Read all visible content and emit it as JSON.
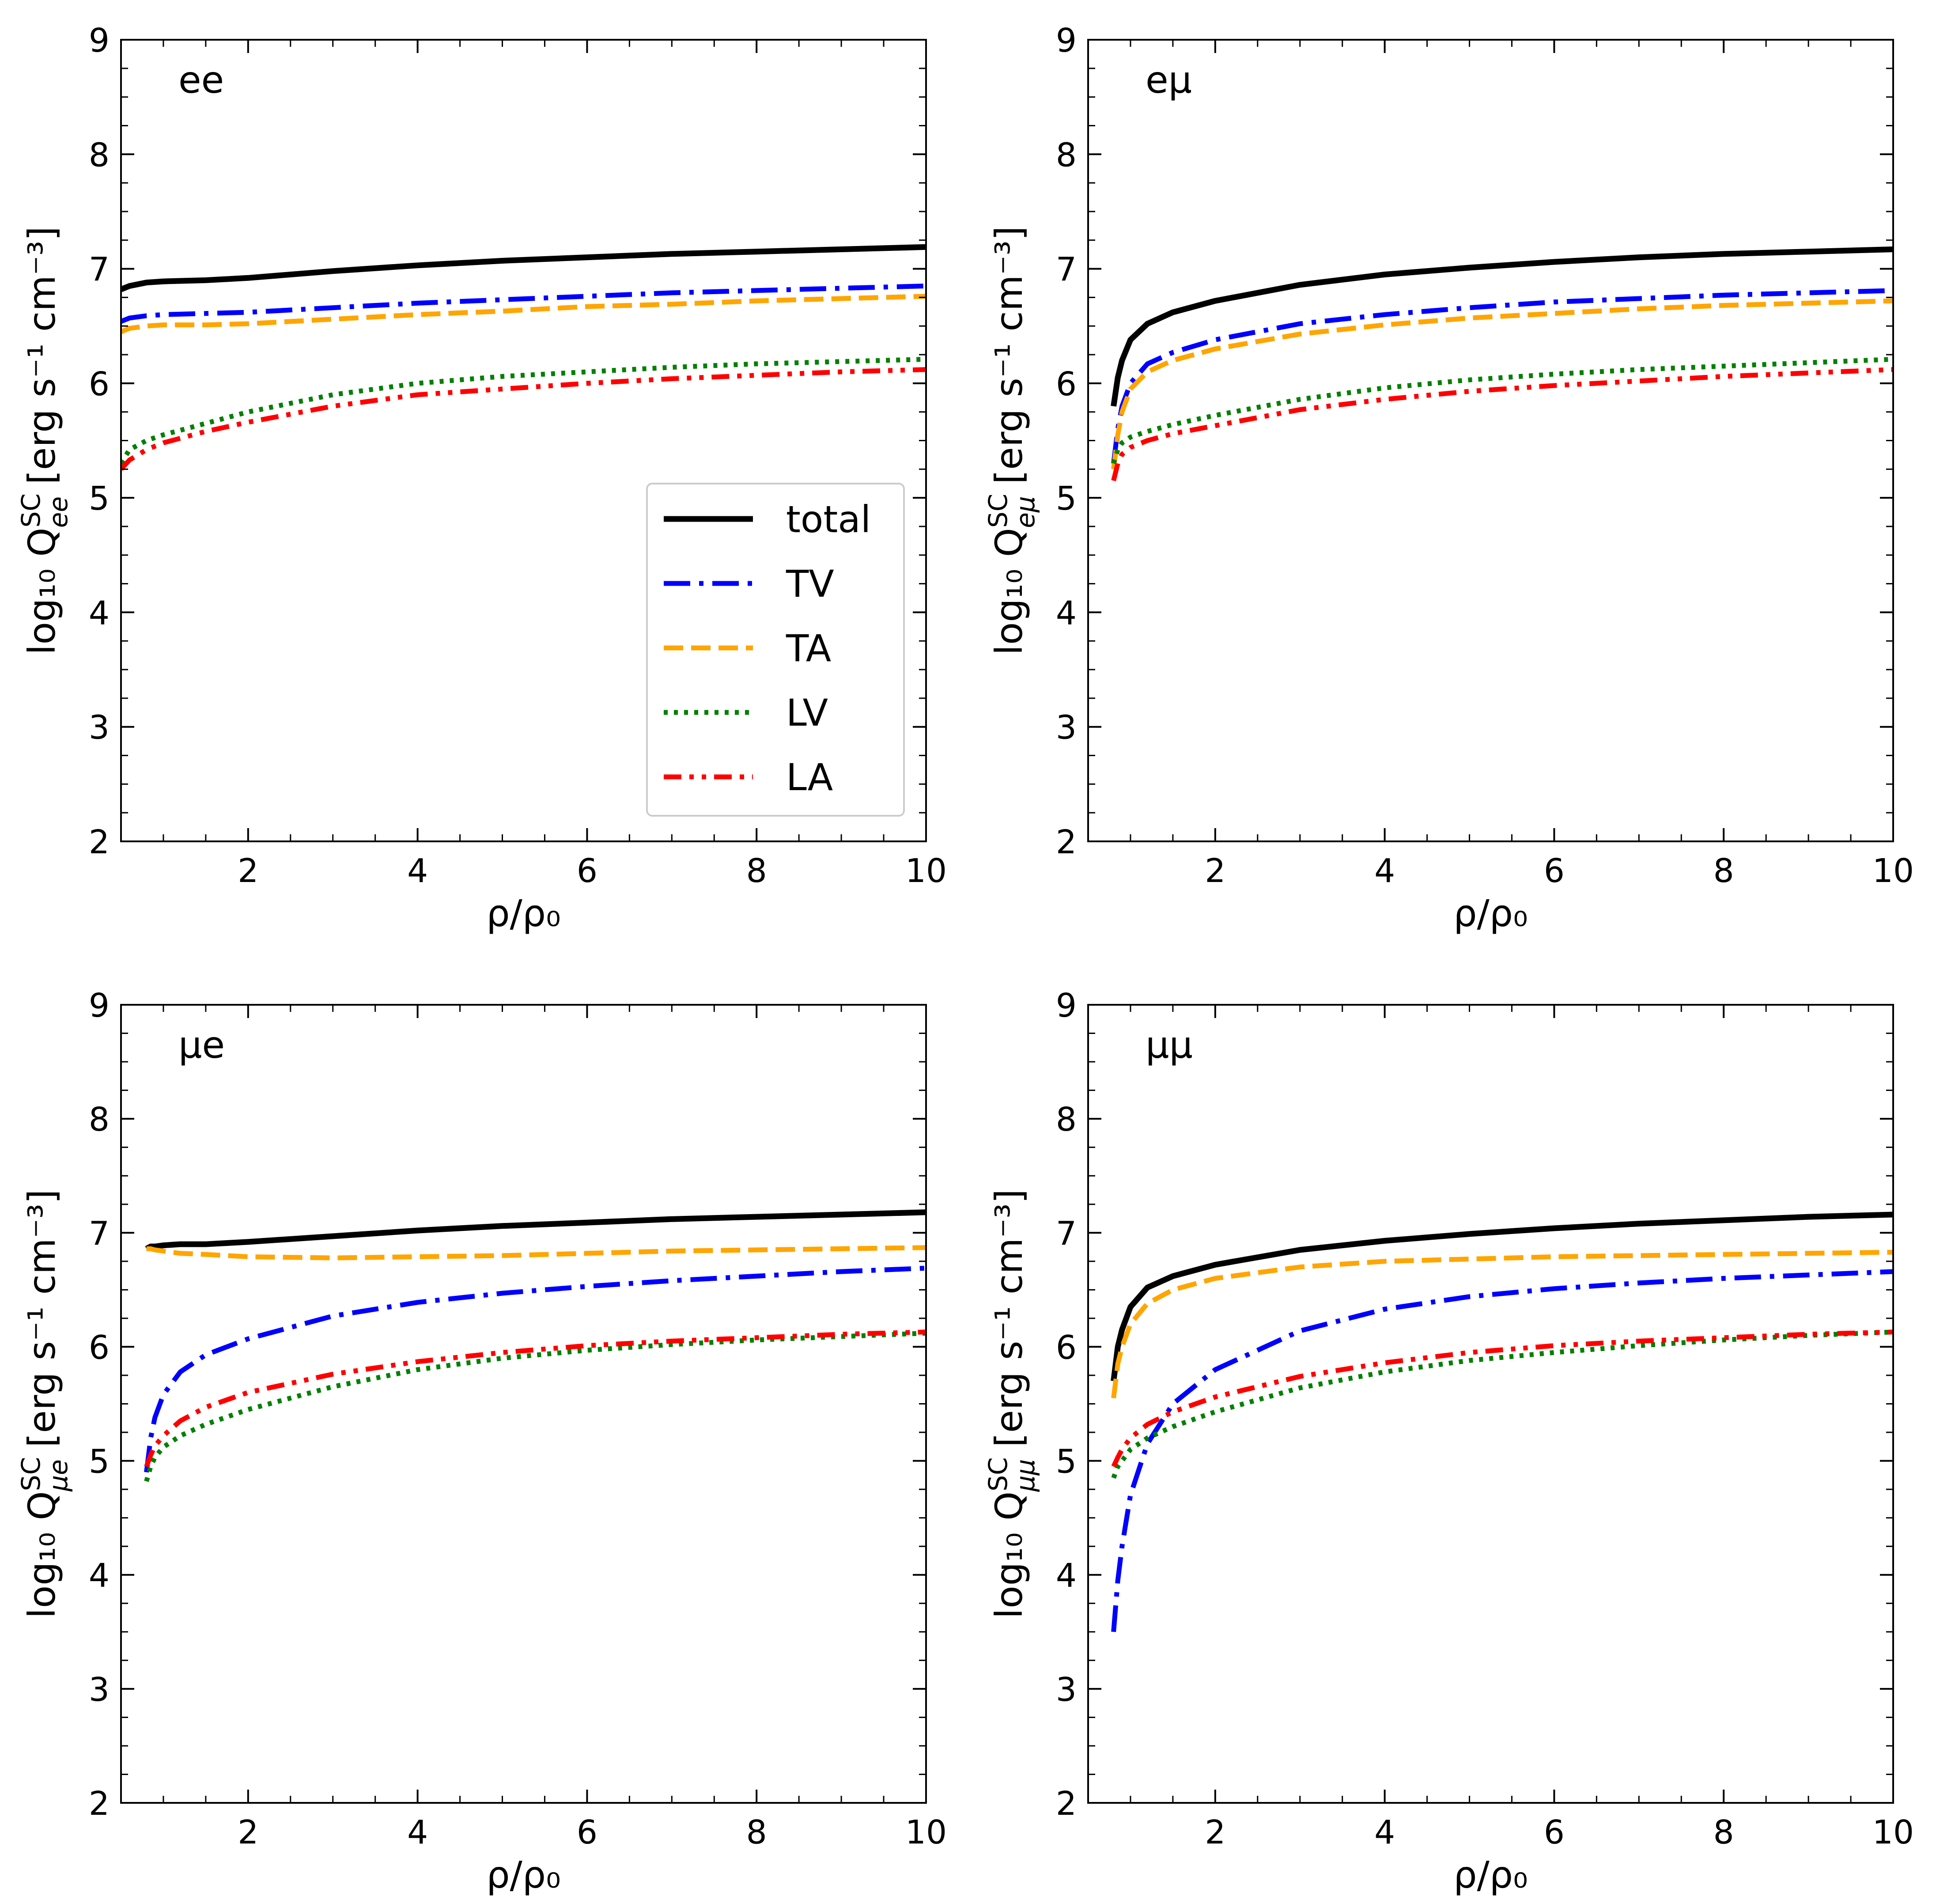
{
  "figure": {
    "legend": {
      "location": "center-right",
      "entries": [
        {
          "label": "total",
          "color": "#000000",
          "style": "solid"
        },
        {
          "label": "TV",
          "color": "#0000ff",
          "style": "dashdot"
        },
        {
          "label": "TA",
          "color": "#ffa500",
          "style": "dashed"
        },
        {
          "label": "LV",
          "color": "#008000",
          "style": "dotted"
        },
        {
          "label": "LA",
          "color": "#ff0000",
          "style": "dashdotdot"
        }
      ]
    }
  },
  "chart_data": [
    {
      "type": "line",
      "panel": "ee",
      "panel_label": "ee",
      "xlabel": "ρ/ρ₀",
      "ylabel_prefix": "log₁₀ Q",
      "ylabel_sup": "SC",
      "ylabel_sub": "ee",
      "ylabel_suffix": " [erg s⁻¹ cm⁻³]",
      "xlim": [
        0.5,
        10
      ],
      "ylim": [
        2,
        9
      ],
      "xticks": [
        2,
        4,
        6,
        8,
        10
      ],
      "yticks": [
        2,
        3,
        4,
        5,
        6,
        7,
        8,
        9
      ],
      "x": [
        0.5,
        0.6,
        0.8,
        1,
        1.5,
        2,
        3,
        4,
        5,
        6,
        7,
        8,
        9,
        10
      ],
      "series": [
        {
          "name": "total",
          "values": [
            6.82,
            6.85,
            6.88,
            6.89,
            6.9,
            6.92,
            6.98,
            7.03,
            7.07,
            7.1,
            7.13,
            7.15,
            7.17,
            7.19
          ]
        },
        {
          "name": "TV",
          "values": [
            6.54,
            6.57,
            6.59,
            6.6,
            6.61,
            6.62,
            6.66,
            6.7,
            6.73,
            6.76,
            6.79,
            6.81,
            6.83,
            6.85
          ]
        },
        {
          "name": "TA",
          "values": [
            6.45,
            6.48,
            6.5,
            6.51,
            6.51,
            6.52,
            6.56,
            6.6,
            6.63,
            6.67,
            6.69,
            6.72,
            6.74,
            6.76
          ]
        },
        {
          "name": "LV",
          "values": [
            5.3,
            5.42,
            5.5,
            5.55,
            5.65,
            5.75,
            5.9,
            6.0,
            6.06,
            6.1,
            6.14,
            6.17,
            6.19,
            6.21
          ]
        },
        {
          "name": "LA",
          "values": [
            5.25,
            5.33,
            5.42,
            5.48,
            5.58,
            5.66,
            5.8,
            5.9,
            5.95,
            6.0,
            6.04,
            6.07,
            6.1,
            6.12
          ]
        }
      ]
    },
    {
      "type": "line",
      "panel": "emu",
      "panel_label": "eμ",
      "xlabel": "ρ/ρ₀",
      "ylabel_prefix": "log₁₀ Q",
      "ylabel_sup": "SC",
      "ylabel_sub": "eμ",
      "ylabel_suffix": " [erg s⁻¹ cm⁻³]",
      "xlim": [
        0.5,
        10
      ],
      "ylim": [
        2,
        9
      ],
      "xticks": [
        2,
        4,
        6,
        8,
        10
      ],
      "yticks": [
        2,
        3,
        4,
        5,
        6,
        7,
        8,
        9
      ],
      "x": [
        0.8,
        0.85,
        0.9,
        1,
        1.2,
        1.5,
        2,
        3,
        4,
        5,
        6,
        7,
        8,
        9,
        10
      ],
      "series": [
        {
          "name": "total",
          "values": [
            5.8,
            6.05,
            6.2,
            6.38,
            6.52,
            6.62,
            6.72,
            6.86,
            6.95,
            7.01,
            7.06,
            7.1,
            7.13,
            7.15,
            7.17
          ]
        },
        {
          "name": "TV",
          "values": [
            5.3,
            5.6,
            5.8,
            6.0,
            6.17,
            6.27,
            6.38,
            6.52,
            6.6,
            6.66,
            6.71,
            6.74,
            6.77,
            6.79,
            6.81
          ]
        },
        {
          "name": "TA",
          "values": [
            5.25,
            5.55,
            5.75,
            5.95,
            6.1,
            6.2,
            6.3,
            6.43,
            6.51,
            6.57,
            6.61,
            6.65,
            6.68,
            6.7,
            6.72
          ]
        },
        {
          "name": "LV",
          "values": [
            5.3,
            5.42,
            5.48,
            5.53,
            5.58,
            5.64,
            5.72,
            5.86,
            5.96,
            6.03,
            6.08,
            6.12,
            6.15,
            6.18,
            6.21
          ]
        },
        {
          "name": "LA",
          "values": [
            5.15,
            5.3,
            5.38,
            5.44,
            5.5,
            5.56,
            5.63,
            5.77,
            5.86,
            5.93,
            5.98,
            6.02,
            6.06,
            6.09,
            6.12
          ]
        }
      ]
    },
    {
      "type": "line",
      "panel": "mue",
      "panel_label": "μe",
      "xlabel": "ρ/ρ₀",
      "ylabel_prefix": "log₁₀ Q",
      "ylabel_sup": "SC",
      "ylabel_sub": "μe",
      "ylabel_suffix": " [erg s⁻¹ cm⁻³]",
      "xlim": [
        0.5,
        10
      ],
      "ylim": [
        2,
        9
      ],
      "xticks": [
        2,
        4,
        6,
        8,
        10
      ],
      "yticks": [
        2,
        3,
        4,
        5,
        6,
        7,
        8,
        9
      ],
      "x": [
        0.8,
        0.85,
        0.9,
        1,
        1.2,
        1.5,
        2,
        3,
        4,
        5,
        6,
        7,
        8,
        9,
        10
      ],
      "series": [
        {
          "name": "total",
          "values": [
            6.86,
            6.88,
            6.88,
            6.89,
            6.9,
            6.9,
            6.92,
            6.97,
            7.02,
            7.06,
            7.09,
            7.12,
            7.14,
            7.16,
            7.18
          ]
        },
        {
          "name": "TV",
          "values": [
            4.9,
            5.2,
            5.38,
            5.58,
            5.78,
            5.93,
            6.07,
            6.27,
            6.39,
            6.47,
            6.53,
            6.58,
            6.62,
            6.66,
            6.69
          ]
        },
        {
          "name": "TA",
          "values": [
            6.86,
            6.86,
            6.85,
            6.84,
            6.82,
            6.81,
            6.79,
            6.78,
            6.79,
            6.8,
            6.82,
            6.84,
            6.85,
            6.86,
            6.87
          ]
        },
        {
          "name": "LV",
          "values": [
            4.82,
            4.95,
            5.03,
            5.12,
            5.22,
            5.32,
            5.45,
            5.65,
            5.8,
            5.9,
            5.97,
            6.02,
            6.06,
            6.09,
            6.12
          ]
        },
        {
          "name": "LA",
          "values": [
            4.95,
            5.05,
            5.13,
            5.22,
            5.35,
            5.47,
            5.6,
            5.76,
            5.87,
            5.95,
            6.01,
            6.05,
            6.08,
            6.11,
            6.13
          ]
        }
      ]
    },
    {
      "type": "line",
      "panel": "mumu",
      "panel_label": "μμ",
      "xlabel": "ρ/ρ₀",
      "ylabel_prefix": "log₁₀ Q",
      "ylabel_sup": "SC",
      "ylabel_sub": "μμ",
      "ylabel_suffix": " [erg s⁻¹ cm⁻³]",
      "xlim": [
        0.5,
        10
      ],
      "ylim": [
        2,
        9
      ],
      "xticks": [
        2,
        4,
        6,
        8,
        10
      ],
      "yticks": [
        2,
        3,
        4,
        5,
        6,
        7,
        8,
        9
      ],
      "x": [
        0.8,
        0.85,
        0.9,
        1,
        1.2,
        1.5,
        2,
        3,
        4,
        5,
        6,
        7,
        8,
        9,
        10
      ],
      "series": [
        {
          "name": "total",
          "values": [
            5.7,
            6.0,
            6.15,
            6.35,
            6.52,
            6.62,
            6.72,
            6.85,
            6.93,
            6.99,
            7.04,
            7.08,
            7.11,
            7.14,
            7.16
          ]
        },
        {
          "name": "TV",
          "values": [
            3.5,
            3.95,
            4.25,
            4.7,
            5.15,
            5.5,
            5.8,
            6.14,
            6.33,
            6.44,
            6.51,
            6.56,
            6.6,
            6.63,
            6.66
          ]
        },
        {
          "name": "TA",
          "values": [
            5.55,
            5.85,
            6.0,
            6.2,
            6.38,
            6.5,
            6.6,
            6.7,
            6.75,
            6.77,
            6.79,
            6.8,
            6.81,
            6.82,
            6.83
          ]
        },
        {
          "name": "LV",
          "values": [
            4.85,
            4.95,
            5.0,
            5.1,
            5.2,
            5.3,
            5.43,
            5.64,
            5.78,
            5.88,
            5.95,
            6.01,
            6.06,
            6.1,
            6.13
          ]
        },
        {
          "name": "LA",
          "values": [
            4.95,
            5.03,
            5.1,
            5.2,
            5.32,
            5.43,
            5.56,
            5.74,
            5.86,
            5.95,
            6.01,
            6.05,
            6.08,
            6.11,
            6.13
          ]
        }
      ]
    }
  ]
}
